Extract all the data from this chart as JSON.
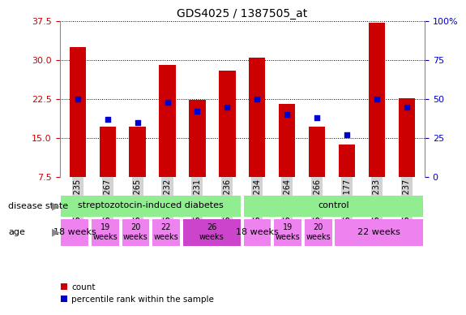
{
  "title": "GDS4025 / 1387505_at",
  "samples": [
    "GSM317235",
    "GSM317267",
    "GSM317265",
    "GSM317232",
    "GSM317231",
    "GSM317236",
    "GSM317234",
    "GSM317264",
    "GSM317266",
    "GSM317177",
    "GSM317233",
    "GSM317237"
  ],
  "count_values": [
    32.5,
    17.2,
    17.2,
    29.0,
    22.3,
    28.0,
    30.5,
    21.5,
    17.2,
    13.7,
    37.2,
    22.7
  ],
  "percentile_values": [
    50,
    37,
    35,
    48,
    42,
    45,
    50,
    40,
    38,
    27,
    50,
    45
  ],
  "ylim_left": [
    7.5,
    37.5
  ],
  "ylim_right": [
    0,
    100
  ],
  "yticks_left": [
    7.5,
    15.0,
    22.5,
    30.0,
    37.5
  ],
  "yticks_right": [
    0,
    25,
    50,
    75,
    100
  ],
  "bar_color": "#CC0000",
  "blue_color": "#0000CC",
  "bar_width": 0.55,
  "background_color": "#ffffff",
  "gray_bg": "#d3d3d3",
  "green_color": "#90EE90",
  "violet_color": "#EE82EE",
  "dark_violet": "#CC44CC",
  "legend_items": [
    "count",
    "percentile rank within the sample"
  ],
  "left_tick_color": "#CC0000",
  "right_tick_color": "#0000CC",
  "age_data": [
    {
      "start": 0,
      "end": 1,
      "label": "18 weeks",
      "color": "#EE82EE",
      "fontsize": 8
    },
    {
      "start": 1,
      "end": 2,
      "label": "19\nweeks",
      "color": "#EE82EE",
      "fontsize": 7
    },
    {
      "start": 2,
      "end": 3,
      "label": "20\nweeks",
      "color": "#EE82EE",
      "fontsize": 7
    },
    {
      "start": 3,
      "end": 4,
      "label": "22\nweeks",
      "color": "#EE82EE",
      "fontsize": 7
    },
    {
      "start": 4,
      "end": 6,
      "label": "26\nweeks",
      "color": "#CC44CC",
      "fontsize": 7
    },
    {
      "start": 6,
      "end": 7,
      "label": "18 weeks",
      "color": "#EE82EE",
      "fontsize": 8
    },
    {
      "start": 7,
      "end": 8,
      "label": "19\nweeks",
      "color": "#EE82EE",
      "fontsize": 7
    },
    {
      "start": 8,
      "end": 9,
      "label": "20\nweeks",
      "color": "#EE82EE",
      "fontsize": 7
    },
    {
      "start": 9,
      "end": 12,
      "label": "22 weeks",
      "color": "#EE82EE",
      "fontsize": 8
    }
  ]
}
